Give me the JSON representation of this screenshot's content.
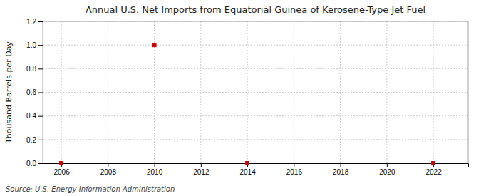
{
  "chart_data": {
    "type": "scatter",
    "title": "Annual U.S. Net Imports from Equatorial Guinea of Kerosene-Type Jet Fuel",
    "y_label": "Thousand Barrels per Day",
    "annotations": [
      "Source: U.S. Energy Information Administration"
    ],
    "x": [
      2006,
      2010,
      2014,
      2022
    ],
    "values": [
      0.0,
      1.0,
      0.0,
      0.0
    ],
    "color": "#CC0000",
    "marker": "square",
    "xlim": [
      2005.2,
      2023.5
    ],
    "ylim": [
      0.0,
      1.2
    ],
    "xticks": [
      2006,
      2008,
      2010,
      2012,
      2014,
      2016,
      2018,
      2020,
      2022
    ],
    "yticks": [
      {
        "value": 0.0,
        "label": "0.0"
      },
      0.2,
      0.4,
      0.6,
      0.8,
      {
        "value": 1.0,
        "label": "1.0"
      },
      1.2
    ],
    "grid": true
  }
}
